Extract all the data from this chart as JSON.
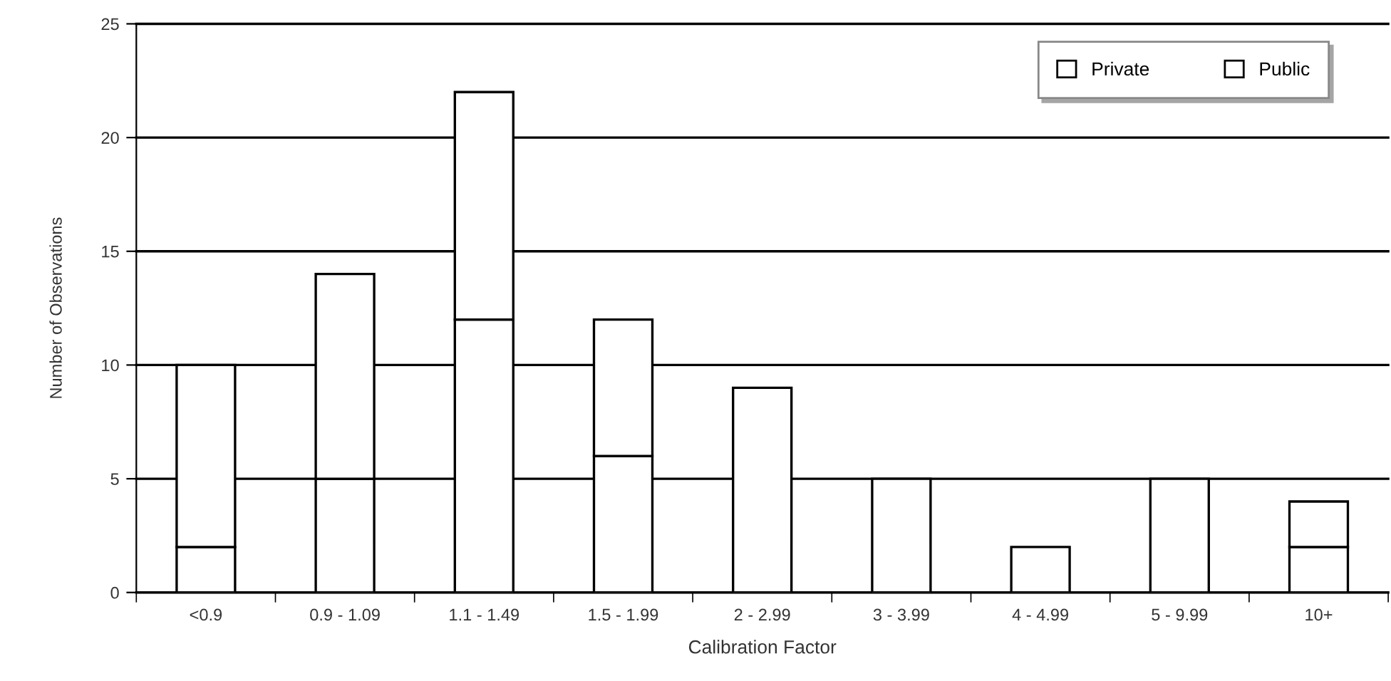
{
  "chart_data": {
    "type": "bar",
    "stacked": true,
    "xlabel": "Calibration Factor",
    "ylabel": "Number of Observations",
    "categories": [
      "<0.9",
      "0.9 - 1.09",
      "1.1 - 1.49",
      "1.5 - 1.99",
      "2 - 2.99",
      "3 - 3.99",
      "4 - 4.99",
      "5 - 9.99",
      "10+"
    ],
    "series": [
      {
        "name": "Private",
        "color": "#ffffff",
        "values": [
          2,
          5,
          12,
          6,
          9,
          5,
          2,
          5,
          2
        ]
      },
      {
        "name": "Public",
        "color": "#ffffff",
        "values": [
          8,
          9,
          10,
          6,
          null,
          null,
          null,
          null,
          2
        ]
      }
    ],
    "ylim": [
      0,
      25
    ],
    "yticks": [
      0,
      5,
      10,
      15,
      20,
      25
    ],
    "grid": "y",
    "legend": "top right"
  }
}
